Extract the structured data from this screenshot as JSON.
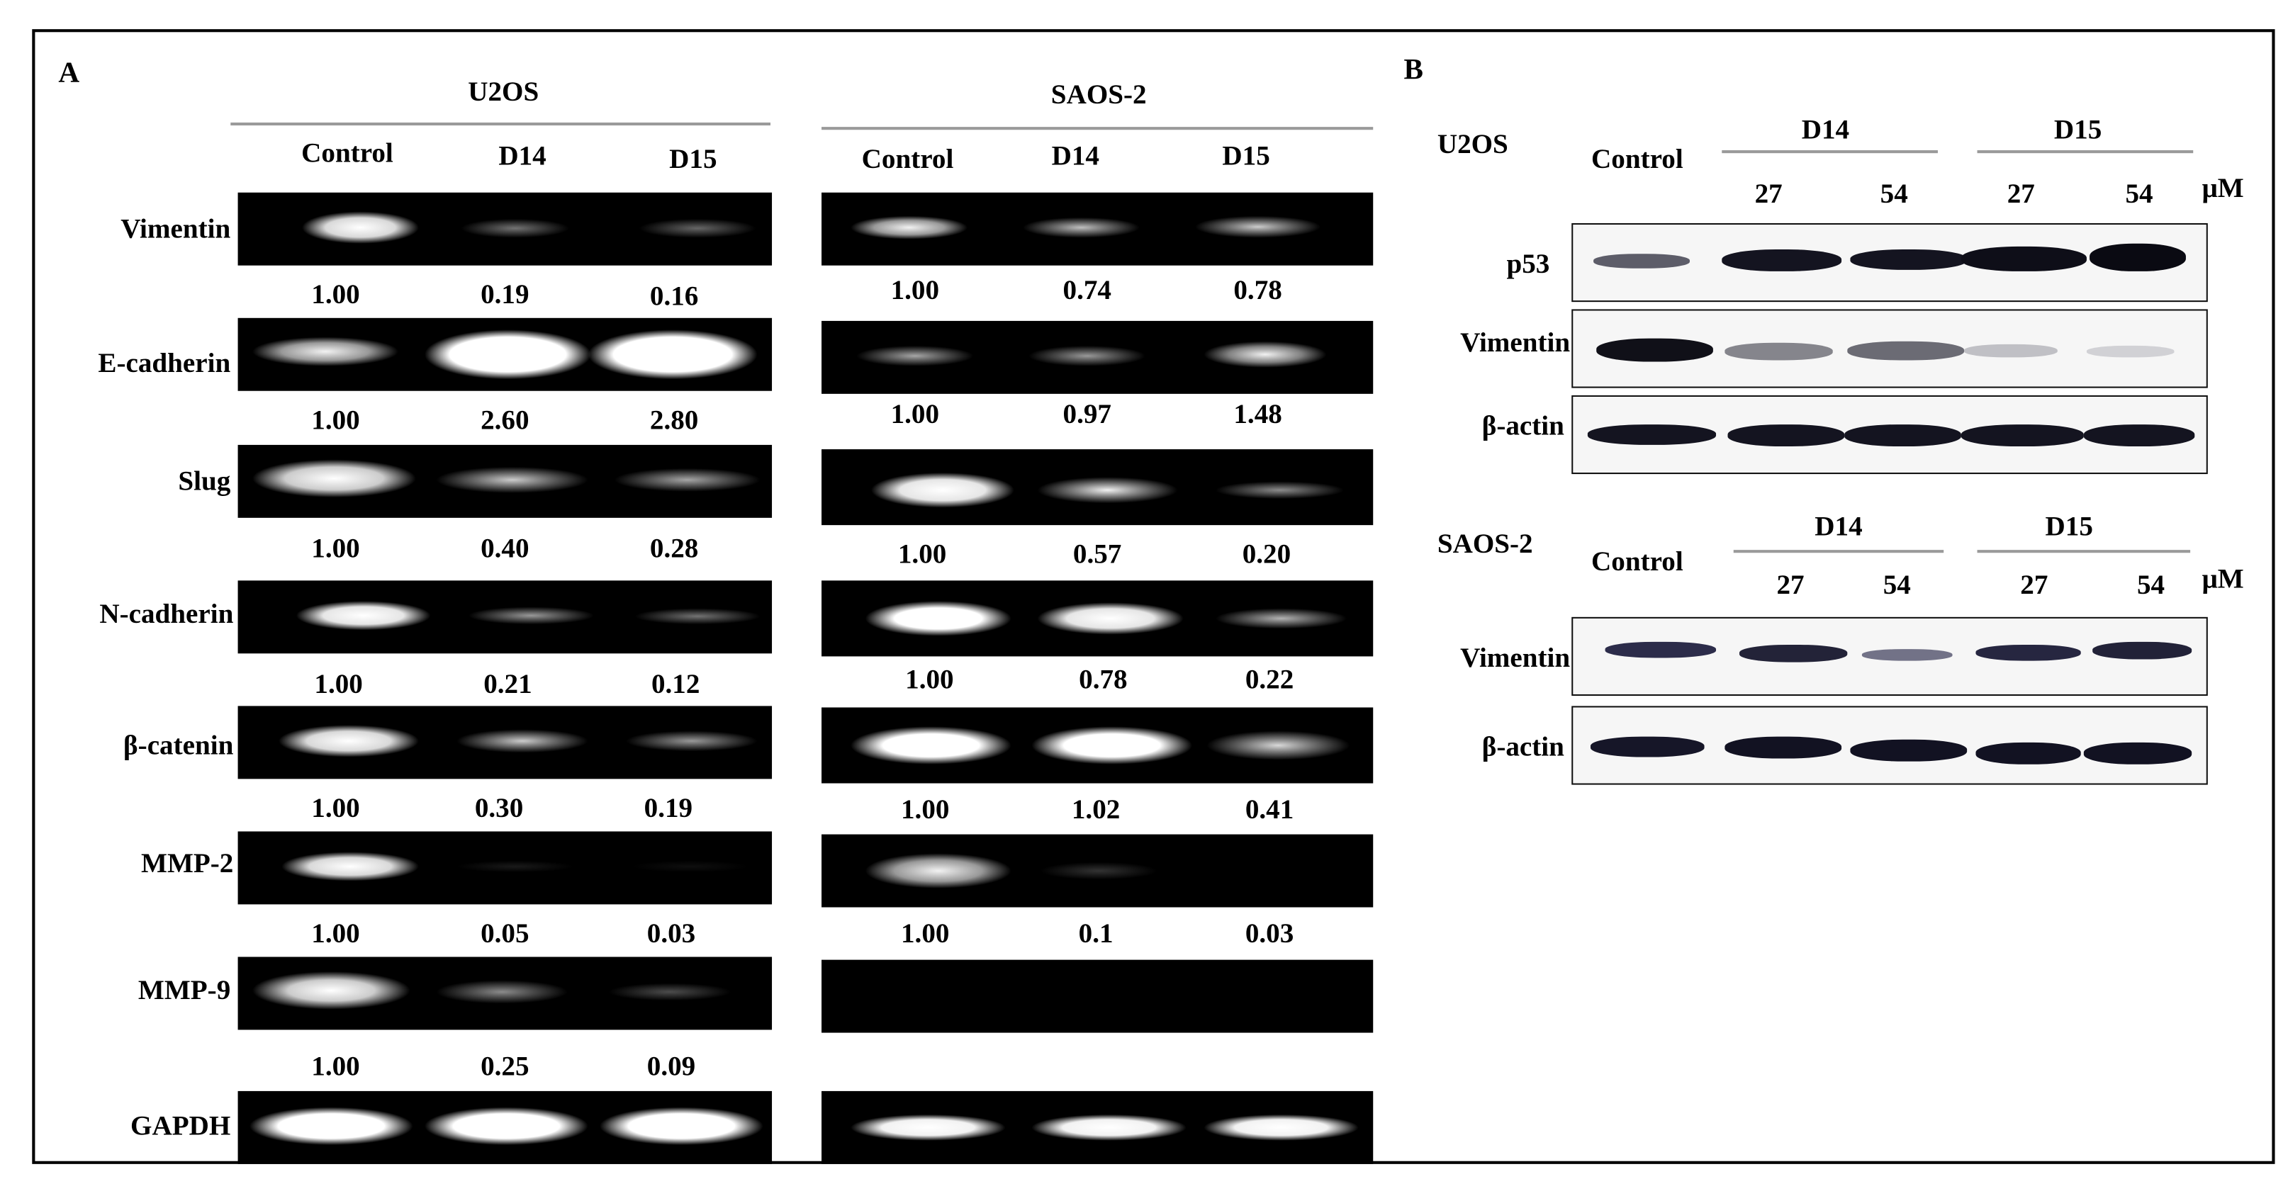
{
  "panelA": {
    "label": "A",
    "u2os": {
      "title": "U2OS",
      "columns": [
        "Control",
        "D14",
        "D15"
      ],
      "rows": [
        {
          "gene": "Vimentin",
          "values": [
            "1.00",
            "0.19",
            "0.16"
          ]
        },
        {
          "gene": "E-cadherin",
          "values": [
            "1.00",
            "2.60",
            "2.80"
          ]
        },
        {
          "gene": "Slug",
          "values": [
            "1.00",
            "0.40",
            "0.28"
          ]
        },
        {
          "gene": "N-cadherin",
          "values": [
            "1.00",
            "0.21",
            "0.12"
          ]
        },
        {
          "gene": "β-catenin",
          "values": [
            "1.00",
            "0.30",
            "0.19"
          ]
        },
        {
          "gene": "MMP-2",
          "values": [
            "1.00",
            "0.05",
            "0.03"
          ]
        },
        {
          "gene": "MMP-9",
          "values": [
            "1.00",
            "0.25",
            "0.09"
          ]
        },
        {
          "gene": "GAPDH",
          "values": [
            "",
            "",
            ""
          ]
        }
      ]
    },
    "saos2": {
      "title": "SAOS-2",
      "columns": [
        "Control",
        "D14",
        "D15"
      ],
      "rows": [
        {
          "gene": "Vimentin",
          "values": [
            "1.00",
            "0.74",
            "0.78"
          ]
        },
        {
          "gene": "E-cadherin",
          "values": [
            "1.00",
            "0.97",
            "1.48"
          ]
        },
        {
          "gene": "Slug",
          "values": [
            "1.00",
            "0.57",
            "0.20"
          ]
        },
        {
          "gene": "N-cadherin",
          "values": [
            "1.00",
            "0.78",
            "0.22"
          ]
        },
        {
          "gene": "β-catenin",
          "values": [
            "1.00",
            "1.02",
            "0.41"
          ]
        },
        {
          "gene": "MMP-2",
          "values": [
            "1.00",
            "0.1",
            "0.03"
          ]
        },
        {
          "gene": "MMP-9",
          "values": [
            "",
            "",
            ""
          ]
        },
        {
          "gene": "GAPDH",
          "values": [
            "",
            "",
            ""
          ]
        }
      ]
    }
  },
  "panelB": {
    "label": "B",
    "unit": "μM",
    "u2os": {
      "cell_line": "U2OS",
      "control": "Control",
      "groups": [
        {
          "name": "D14",
          "doses": [
            "27",
            "54"
          ]
        },
        {
          "name": "D15",
          "doses": [
            "27",
            "54"
          ]
        }
      ],
      "blots": [
        "p53",
        "Vimentin",
        "β-actin"
      ]
    },
    "saos2": {
      "cell_line": "SAOS-2",
      "control": "Control",
      "groups": [
        {
          "name": "D14",
          "doses": [
            "27",
            "54"
          ]
        },
        {
          "name": "D15",
          "doses": [
            "27",
            "54"
          ]
        }
      ],
      "blots": [
        "Vimentin",
        "β-actin"
      ]
    }
  }
}
